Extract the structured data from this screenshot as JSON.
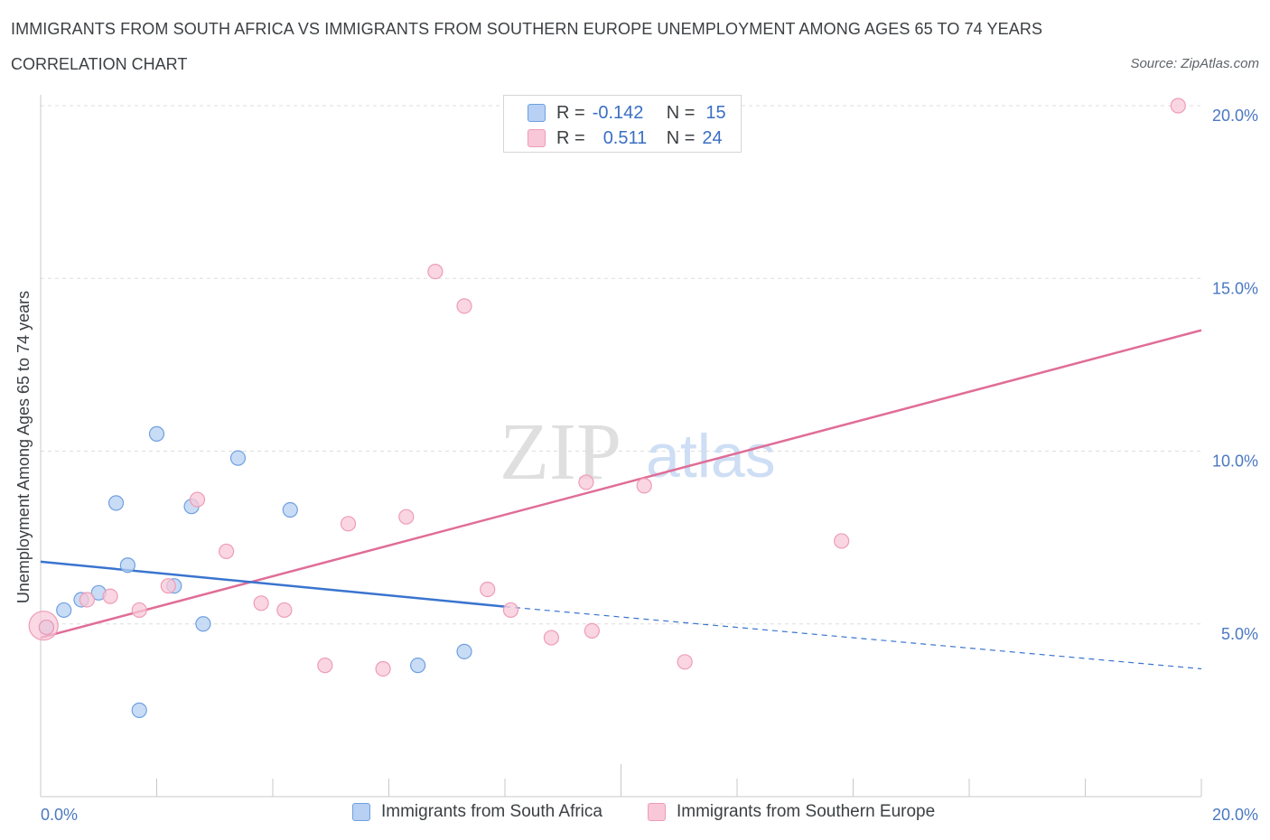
{
  "header": {
    "title": "IMMIGRANTS FROM SOUTH AFRICA VS IMMIGRANTS FROM SOUTHERN EUROPE UNEMPLOYMENT AMONG AGES 65 TO 74 YEARS",
    "subtitle": "CORRELATION CHART",
    "source": "Source: ZipAtlas.com"
  },
  "legend": {
    "row1": {
      "r_label": "R =",
      "r_value": "-0.142",
      "n_label": "N =",
      "n_value": "15"
    },
    "row2": {
      "r_label": "R =",
      "r_value": "0.511",
      "n_label": "N =",
      "n_value": "24"
    }
  },
  "colors": {
    "blue": "#6fa0e0",
    "blue_fill": "#b7d0f3",
    "blue_line": "#3a74cf",
    "pink": "#ee9cb6",
    "pink_fill": "#f8c8d8",
    "pink_line": "#e06d97"
  },
  "chart_data": {
    "type": "scatter",
    "title": "IMMIGRANTS FROM SOUTH AFRICA VS IMMIGRANTS FROM SOUTHERN EUROPE UNEMPLOYMENT AMONG AGES 65 TO 74 YEARS",
    "xlabel": "",
    "ylabel": "Unemployment Among Ages 65 to 74 years",
    "xlim": [
      0,
      20
    ],
    "ylim": [
      0,
      20
    ],
    "x_tick_labels": [
      "0.0%",
      "20.0%"
    ],
    "y_tick_labels": [
      "5.0%",
      "10.0%",
      "15.0%",
      "20.0%"
    ],
    "y_ticks": [
      5,
      10,
      15,
      20
    ],
    "grid": true,
    "legend_position": "top-center",
    "series": [
      {
        "name": "Immigrants from South Africa",
        "color": "blue",
        "points": [
          [
            0.1,
            4.9
          ],
          [
            0.4,
            5.4
          ],
          [
            0.7,
            5.7
          ],
          [
            1.0,
            5.9
          ],
          [
            1.3,
            8.5
          ],
          [
            1.5,
            6.7
          ],
          [
            1.7,
            2.5
          ],
          [
            2.0,
            10.5
          ],
          [
            2.3,
            6.1
          ],
          [
            2.6,
            8.4
          ],
          [
            2.8,
            5.0
          ],
          [
            3.4,
            9.8
          ],
          [
            4.3,
            8.3
          ],
          [
            6.5,
            3.8
          ],
          [
            7.3,
            4.2
          ]
        ],
        "trend": {
          "x0": 0,
          "y0": 6.8,
          "x1": 8.0,
          "y1": 5.5,
          "dashed_to_x": 20,
          "dashed_to_y": 3.7
        }
      },
      {
        "name": "Immigrants from Southern Europe",
        "color": "pink",
        "points": [
          [
            0.1,
            4.9
          ],
          [
            0.8,
            5.7
          ],
          [
            1.2,
            5.8
          ],
          [
            1.7,
            5.4
          ],
          [
            2.2,
            6.1
          ],
          [
            2.7,
            8.6
          ],
          [
            3.2,
            7.1
          ],
          [
            3.8,
            5.6
          ],
          [
            4.2,
            5.4
          ],
          [
            4.9,
            3.8
          ],
          [
            5.3,
            7.9
          ],
          [
            5.9,
            3.7
          ],
          [
            6.3,
            8.1
          ],
          [
            6.8,
            15.2
          ],
          [
            7.3,
            14.2
          ],
          [
            7.7,
            6.0
          ],
          [
            8.1,
            5.4
          ],
          [
            8.8,
            4.6
          ],
          [
            9.4,
            9.1
          ],
          [
            9.5,
            4.8
          ],
          [
            10.4,
            9.0
          ],
          [
            11.1,
            3.9
          ],
          [
            13.8,
            7.4
          ],
          [
            19.6,
            20.0
          ]
        ],
        "trend": {
          "x0": 0,
          "y0": 4.6,
          "x1": 20,
          "y1": 13.5
        }
      }
    ]
  },
  "bottom_legend": {
    "item1": "Immigrants from South Africa",
    "item2": "Immigrants from Southern Europe"
  },
  "watermark": {
    "zip": "ZIP",
    "atlas": "atlas"
  }
}
